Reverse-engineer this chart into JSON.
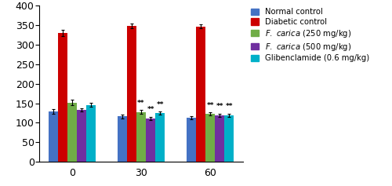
{
  "groups": [
    0,
    30,
    60
  ],
  "series_names": [
    "Normal control",
    "Diabetic control",
    "F. carica (250 mg/kg)",
    "F. carica (500 mg/kg)",
    "Glibenclamide (0.6 mg/kg)"
  ],
  "series": {
    "Normal control": {
      "values": [
        129,
        116,
        113
      ],
      "errors": [
        6,
        5,
        4
      ],
      "color": "#4472C4"
    },
    "Diabetic control": {
      "values": [
        329,
        348,
        346
      ],
      "errors": [
        8,
        6,
        5
      ],
      "color": "#CC0000"
    },
    "F. carica (250 mg/kg)": {
      "values": [
        152,
        127,
        122
      ],
      "errors": [
        7,
        5,
        4
      ],
      "color": "#70AD47"
    },
    "F. carica (500 mg/kg)": {
      "values": [
        133,
        111,
        118
      ],
      "errors": [
        5,
        4,
        4
      ],
      "color": "#7030A0"
    },
    "Glibenclamide (0.6 mg/kg)": {
      "values": [
        146,
        124,
        118
      ],
      "errors": [
        5,
        4,
        4
      ],
      "color": "#00B0C8"
    }
  },
  "ylim": [
    0,
    400
  ],
  "yticks": [
    0,
    50,
    100,
    150,
    200,
    250,
    300,
    350,
    400
  ],
  "significance": {
    "30": [
      2,
      3,
      4
    ],
    "60": [
      2,
      3,
      4
    ]
  },
  "sig_label": "**",
  "bar_width": 0.11,
  "group_centers": [
    0.35,
    1.15,
    1.95
  ]
}
